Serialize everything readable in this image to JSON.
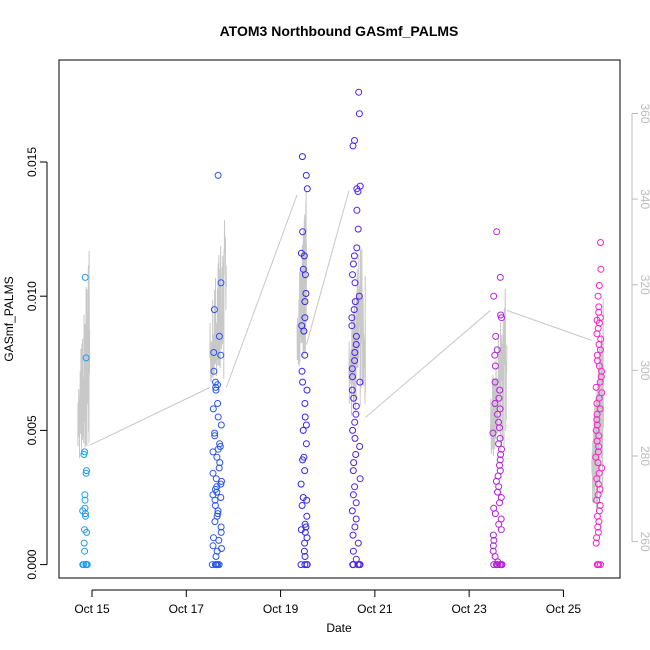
{
  "chart_data": {
    "type": "scatter",
    "title": "ATOM3 Northbound GASmf_PALMS",
    "xlabel": "Date",
    "ylabel": "GASmf_PALMS",
    "x_ticks": [
      "Oct 15",
      "Oct 17",
      "Oct 19",
      "Oct 21",
      "Oct 23",
      "Oct 25"
    ],
    "x_tick_days": [
      15,
      17,
      19,
      21,
      23,
      25
    ],
    "xlim": [
      14.3,
      26.2
    ],
    "y_left_ticks": [
      "0.000",
      "0.005",
      "0.010",
      "0.015"
    ],
    "y_left_tick_values": [
      0,
      0.005,
      0.01,
      0.015
    ],
    "ylim": [
      -0.0005,
      0.0188
    ],
    "y_right_ticks": [
      "260",
      "280",
      "300",
      "320",
      "340",
      "360"
    ],
    "y_right_tick_values": [
      260,
      280,
      300,
      320,
      340,
      360
    ],
    "y_right_lim": [
      251.5,
      372.5
    ],
    "colors": {
      "axis": "#000000",
      "right_axis": "#bbbbbb",
      "line": "#c8c8c8",
      "point_start": "#1ea0f0",
      "point_mid": "#3322ee",
      "point_end": "#ff22cc"
    },
    "series": [
      {
        "kind": "points",
        "groups": [
          {
            "day": 14.85,
            "spread": 0.1,
            "y": [
              0.0077,
              0.0107,
              0.0042,
              0.0041,
              0.0035,
              0.0034,
              0.0026,
              0.0024,
              0.0021,
              0.002,
              0.0019,
              0.0018,
              0.0013,
              0.0012,
              0.0008,
              0.0005,
              0.0,
              0.0,
              0.0,
              0.0,
              0.0,
              0.0
            ]
          },
          {
            "day": 17.65,
            "spread": 0.2,
            "y": [
              0.0145,
              0.0105,
              0.0095,
              0.0085,
              0.0079,
              0.0078,
              0.0072,
              0.0068,
              0.0067,
              0.0066,
              0.0065,
              0.006,
              0.0058,
              0.0055,
              0.0052,
              0.0049,
              0.0048,
              0.0045,
              0.0044,
              0.0043,
              0.0042,
              0.004,
              0.0038,
              0.0036,
              0.0034,
              0.0032,
              0.0031,
              0.003,
              0.0029,
              0.0028,
              0.0027,
              0.0026,
              0.0025,
              0.0024,
              0.0022,
              0.002,
              0.0019,
              0.0018,
              0.0016,
              0.0014,
              0.0012,
              0.001,
              0.0009,
              0.0007,
              0.0006,
              0.0005,
              0.0003,
              0.0,
              0.0,
              0.0,
              0.0,
              0.0,
              0.0
            ]
          },
          {
            "day": 19.5,
            "spread": 0.14,
            "y": [
              0.0152,
              0.0145,
              0.014,
              0.0124,
              0.0116,
              0.0115,
              0.011,
              0.0108,
              0.0101,
              0.0098,
              0.0092,
              0.0089,
              0.0087,
              0.0078,
              0.0072,
              0.0068,
              0.0065,
              0.006,
              0.0055,
              0.0052,
              0.005,
              0.0045,
              0.004,
              0.0039,
              0.0035,
              0.003,
              0.0025,
              0.0024,
              0.0022,
              0.0018,
              0.0015,
              0.0014,
              0.0013,
              0.0012,
              0.001,
              0.0008,
              0.0005,
              0.0003,
              0.0,
              0.0,
              0.0,
              0.0
            ]
          },
          {
            "day": 20.6,
            "spread": 0.18,
            "y": [
              0.0176,
              0.0168,
              0.0158,
              0.0156,
              0.0141,
              0.014,
              0.0139,
              0.0132,
              0.0125,
              0.0118,
              0.0115,
              0.0112,
              0.0108,
              0.0105,
              0.01,
              0.0098,
              0.0095,
              0.0092,
              0.0089,
              0.0085,
              0.0082,
              0.0079,
              0.0076,
              0.0073,
              0.007,
              0.0068,
              0.0065,
              0.0062,
              0.0059,
              0.0056,
              0.0053,
              0.005,
              0.0047,
              0.0044,
              0.0041,
              0.0038,
              0.0035,
              0.0032,
              0.0029,
              0.0026,
              0.0023,
              0.002,
              0.0017,
              0.0014,
              0.0011,
              0.0008,
              0.0005,
              0.0002,
              0.0,
              0.0,
              0.0,
              0.0,
              0.0,
              0.0,
              0.0
            ]
          },
          {
            "day": 23.6,
            "spread": 0.2,
            "y": [
              0.0124,
              0.0107,
              0.01,
              0.0093,
              0.0092,
              0.0085,
              0.008,
              0.0078,
              0.0074,
              0.0068,
              0.0065,
              0.0062,
              0.006,
              0.0058,
              0.0056,
              0.0053,
              0.0051,
              0.0049,
              0.0047,
              0.0045,
              0.0043,
              0.0041,
              0.0039,
              0.0037,
              0.0035,
              0.0033,
              0.0031,
              0.0029,
              0.0027,
              0.0025,
              0.0023,
              0.0021,
              0.0019,
              0.0017,
              0.0015,
              0.0013,
              0.0011,
              0.0009,
              0.0007,
              0.0005,
              0.0003,
              0.0001,
              0.0,
              0.0,
              0.0,
              0.0,
              0.0,
              0.0,
              0.0,
              0.0
            ]
          },
          {
            "day": 25.75,
            "spread": 0.13,
            "y": [
              0.012,
              0.011,
              0.0104,
              0.01,
              0.0096,
              0.0094,
              0.0092,
              0.0091,
              0.009,
              0.0088,
              0.0086,
              0.0084,
              0.0082,
              0.008,
              0.0078,
              0.0076,
              0.0074,
              0.0072,
              0.007,
              0.0068,
              0.0066,
              0.0064,
              0.0062,
              0.006,
              0.0058,
              0.0056,
              0.0054,
              0.0052,
              0.005,
              0.0048,
              0.0046,
              0.0044,
              0.0042,
              0.004,
              0.0038,
              0.0036,
              0.0034,
              0.0032,
              0.003,
              0.0028,
              0.0026,
              0.0024,
              0.0022,
              0.002,
              0.0018,
              0.0016,
              0.0014,
              0.0012,
              0.001,
              0.0008,
              0.0,
              0.0,
              0.0,
              0.0
            ]
          }
        ]
      },
      {
        "kind": "line",
        "axis": "right",
        "segments": [
          {
            "x0": 14.7,
            "x1": 14.95,
            "lo": 279,
            "hi": 330
          },
          {
            "x0": 17.5,
            "x1": 17.85,
            "lo": 297,
            "hi": 341
          },
          {
            "x0": 19.35,
            "x1": 19.55,
            "lo": 300,
            "hi": 344
          },
          {
            "x0": 20.45,
            "x1": 20.8,
            "lo": 288,
            "hi": 342
          },
          {
            "x0": 23.45,
            "x1": 23.8,
            "lo": 280,
            "hi": 322
          },
          {
            "x0": 25.6,
            "x1": 25.85,
            "lo": 266,
            "hi": 318
          }
        ],
        "connectors": [
          [
            14.95,
            282.5,
            17.5,
            296
          ],
          [
            17.85,
            296,
            19.35,
            341
          ],
          [
            19.55,
            306,
            20.45,
            342
          ],
          [
            20.8,
            289,
            23.45,
            314
          ],
          [
            23.8,
            314,
            25.6,
            307
          ]
        ]
      }
    ],
    "grid": false,
    "legend": "none"
  }
}
